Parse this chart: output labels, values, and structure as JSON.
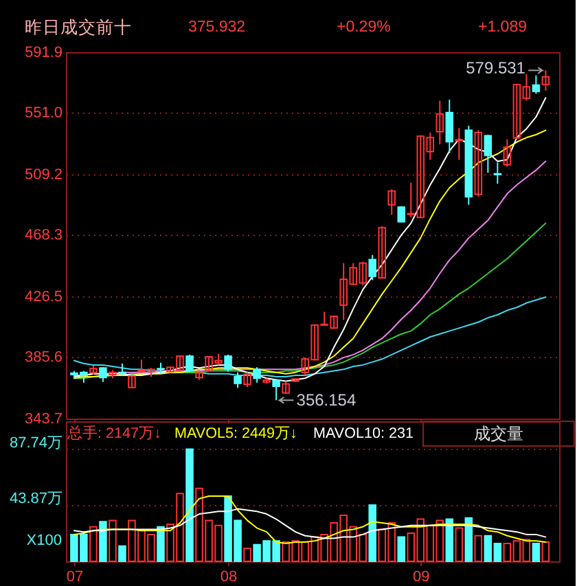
{
  "chart_data": [
    {
      "type": "candlestick",
      "title": "昨日成交前十",
      "categories": [
        "07",
        null,
        null,
        null,
        null,
        null,
        null,
        null,
        null,
        null,
        null,
        null,
        null,
        null,
        null,
        null,
        "08",
        null,
        null,
        null,
        null,
        null,
        null,
        null,
        null,
        null,
        null,
        null,
        null,
        null,
        null,
        null,
        null,
        null,
        null,
        null,
        "09",
        null,
        null,
        null,
        null,
        null,
        null,
        null,
        null,
        null,
        null,
        null,
        null,
        null
      ],
      "ohlc": [
        [
          374.5,
          376,
          371,
          373.5
        ],
        [
          375,
          376,
          368,
          373
        ],
        [
          375,
          379.5,
          373.5,
          377.5
        ],
        [
          378,
          378.5,
          368.5,
          371.5
        ],
        [
          373.5,
          376.5,
          371,
          375
        ],
        [
          375,
          381,
          373,
          374.5
        ],
        [
          364.7,
          373,
          364.5,
          372.5
        ],
        [
          375.5,
          383.5,
          375,
          376.5
        ],
        [
          375.5,
          378,
          372,
          377
        ],
        [
          377.5,
          381.5,
          374,
          377
        ],
        [
          375.5,
          379,
          375,
          378.5
        ],
        [
          376.5,
          386.5,
          376,
          386
        ],
        [
          386,
          387,
          375.5,
          376
        ],
        [
          371.5,
          375,
          370,
          374.6
        ],
        [
          376.5,
          386,
          375.5,
          385.5
        ],
        [
          381.5,
          387.5,
          380,
          383
        ],
        [
          386,
          387,
          375.5,
          377
        ],
        [
          372,
          375,
          364.5,
          367.5
        ],
        [
          366.9,
          375,
          365,
          373.8
        ],
        [
          377,
          378.5,
          368,
          371
        ],
        [
          368.4,
          371,
          367.5,
          369.7
        ],
        [
          369.5,
          370.5,
          356.154,
          365.5
        ],
        [
          361,
          369,
          360.5,
          367.2
        ],
        [
          369,
          371,
          368.5,
          370.5
        ],
        [
          375,
          385,
          373,
          384
        ],
        [
          383.5,
          407.5,
          383,
          407
        ],
        [
          407,
          416,
          406.5,
          407.5
        ],
        [
          405,
          413.5,
          404.5,
          413
        ],
        [
          420.5,
          449,
          410.5,
          438
        ],
        [
          434.7,
          449,
          434,
          445.8
        ],
        [
          435.5,
          450,
          434,
          449
        ],
        [
          451.4,
          454.5,
          437.5,
          440
        ],
        [
          439,
          474,
          438.5,
          473
        ],
        [
          488.5,
          499,
          481.7,
          497.8
        ],
        [
          487,
          487.5,
          476.5,
          477
        ],
        [
          482,
          503.5,
          480,
          482.5
        ],
        [
          480,
          535.5,
          479.5,
          535
        ],
        [
          524.5,
          537.5,
          519,
          534
        ],
        [
          538,
          559,
          529.5,
          550
        ],
        [
          551,
          559.7,
          523.5,
          531.3
        ],
        [
          532,
          540.5,
          519,
          532.5
        ],
        [
          539,
          542,
          488.5,
          494
        ],
        [
          495.6,
          539,
          494,
          537.5
        ],
        [
          535.3,
          536,
          510.2,
          522
        ],
        [
          509.5,
          517.3,
          502.8,
          509
        ],
        [
          515.7,
          532.8,
          514.2,
          527.5
        ],
        [
          533.8,
          570.5,
          533,
          569.9
        ],
        [
          560.6,
          577,
          559,
          568.4
        ],
        [
          569.6,
          576.1,
          563.7,
          565.3
        ],
        [
          569.9,
          579.531,
          565.9,
          575.2
        ]
      ],
      "colors": [
        "#54ffff",
        "#54ffff",
        "#ff3232",
        "#54ffff",
        "#ff3232",
        "#54ffff",
        "#ff3232",
        "#ff3232",
        "#ff3232",
        "#54ffff",
        "#ff3232",
        "#ff3232",
        "#54ffff",
        "#ff3232",
        "#ff3232",
        "#ff3232",
        "#54ffff",
        "#54ffff",
        "#ff3232",
        "#54ffff",
        "#ff3232",
        "#54ffff",
        "#ff3232",
        "#ff3232",
        "#ff3232",
        "#ff3232",
        "#ff3232",
        "#ff3232",
        "#ff3232",
        "#ff3232",
        "#ff3232",
        "#54ffff",
        "#ff3232",
        "#ff3232",
        "#54ffff",
        "#ff3232",
        "#ff3232",
        "#ff3232",
        "#ff3232",
        "#54ffff",
        "#ff3232",
        "#54ffff",
        "#ff3232",
        "#54ffff",
        "#54ffff",
        "#ff3232",
        "#ff3232",
        "#ff3232",
        "#54ffff",
        "#ff3232"
      ],
      "series": [
        {
          "type": "line",
          "color": "#40d8f0",
          "values": [
            383,
            381,
            380,
            380,
            379,
            378,
            377,
            377,
            376,
            376,
            375,
            375,
            375,
            375,
            374,
            374,
            374,
            373,
            373,
            373,
            373,
            372,
            372,
            373,
            373,
            374,
            375,
            376,
            377,
            379,
            380,
            382,
            384,
            387,
            390,
            393,
            396,
            399,
            401,
            403,
            405,
            407,
            409,
            412,
            414,
            417,
            419,
            422,
            424,
            426
          ]
        },
        {
          "type": "line",
          "color": "#32cd32",
          "values": [
            371,
            371,
            372,
            372,
            373,
            373,
            374,
            374,
            374,
            375,
            375,
            375,
            375,
            375,
            376,
            376,
            376,
            376,
            375,
            375,
            375,
            375,
            376,
            376,
            377,
            378,
            379,
            380,
            382,
            385,
            388,
            392,
            395,
            398,
            401,
            403,
            408,
            414,
            418,
            423,
            428,
            432,
            437,
            442,
            447,
            452,
            458,
            464,
            470,
            476
          ]
        },
        {
          "type": "line",
          "color": "#ee82ee",
          "values": [
            373,
            373,
            374,
            374,
            374,
            375,
            375,
            375,
            375,
            376,
            376,
            376,
            376,
            376,
            377,
            377,
            377,
            377,
            377,
            377,
            377,
            377,
            377,
            377,
            378,
            379,
            380,
            382,
            385,
            387,
            390,
            394,
            398,
            404,
            411,
            417,
            424,
            432,
            442,
            451,
            458,
            466,
            472,
            478,
            487,
            496,
            502,
            507,
            512,
            518
          ]
        },
        {
          "type": "line",
          "color": "#ffff00",
          "values": [
            371,
            372,
            372,
            373,
            373,
            373,
            373,
            374,
            374,
            374,
            375,
            375,
            376,
            377,
            377,
            378,
            378,
            378,
            378,
            377,
            376,
            375,
            374,
            375,
            377,
            379,
            382,
            386,
            392,
            398,
            408,
            418,
            428,
            437,
            446,
            456,
            466,
            479,
            491,
            500,
            506,
            511,
            517,
            520,
            523,
            527,
            531,
            534,
            536,
            539
          ]
        },
        {
          "type": "line",
          "color": "#ffffff",
          "values": [
            372,
            373,
            374,
            374,
            374,
            374,
            373,
            373,
            374,
            375,
            376,
            378,
            379,
            378,
            379,
            380,
            380,
            377,
            375,
            373,
            371,
            370,
            369,
            370,
            371,
            374,
            379,
            392,
            404,
            418,
            431,
            440,
            448,
            458,
            468,
            476,
            489,
            502,
            513,
            525,
            533,
            530,
            526,
            524,
            518,
            519,
            534,
            540,
            548,
            561
          ]
        }
      ],
      "ylim": [
        343.7,
        591.9
      ],
      "yticks": [
        343.7,
        385.6,
        426.5,
        468.3,
        509.2,
        {
          "value": 551.0,
          "label": "551.0"
        },
        591.9
      ],
      "grid": "y",
      "tick_labels": "y",
      "annotations": [
        "375.932",
        "+0.29%",
        "+1.089",
        "579.531",
        "356.154"
      ]
    },
    {
      "type": "bar",
      "title": "成交量",
      "ylabel": "X100",
      "categories": [
        "07",
        null,
        null,
        null,
        null,
        null,
        null,
        null,
        null,
        null,
        null,
        null,
        null,
        null,
        null,
        null,
        "08",
        null,
        null,
        null,
        null,
        null,
        null,
        null,
        null,
        null,
        null,
        null,
        null,
        null,
        null,
        null,
        null,
        null,
        null,
        null,
        "09",
        null,
        null,
        null,
        null,
        null,
        null,
        null,
        null,
        null,
        null,
        null,
        null,
        null
      ],
      "series": [
        {
          "type": "bar",
          "colors": [
            "#54ffff",
            "#54ffff",
            "#ff3232",
            "#54ffff",
            "#ff3232",
            "#54ffff",
            "#ff3232",
            "#ff3232",
            "#ff3232",
            "#54ffff",
            "#ff3232",
            "#ff3232",
            "#54ffff",
            "#ff3232",
            "#ff3232",
            "#ff3232",
            "#54ffff",
            "#54ffff",
            "#ff3232",
            "#54ffff",
            "#54ffff",
            "#54ffff",
            "#ff3232",
            "#ff3232",
            "#ff3232",
            "#ff3232",
            "#ff3232",
            "#ff3232",
            "#ff3232",
            "#ff3232",
            "#ff3232",
            "#54ffff",
            "#ff3232",
            "#ff3232",
            "#54ffff",
            "#ff3232",
            "#ff3232",
            "#ff3232",
            "#ff3232",
            "#54ffff",
            "#ff3232",
            "#54ffff",
            "#ff3232",
            "#54ffff",
            "#54ffff",
            "#ff3232",
            "#ff3232",
            "#ff3232",
            "#54ffff",
            "#ff3232"
          ],
          "values": [
            21,
            21,
            27,
            31,
            32,
            12,
            32,
            24,
            21,
            27,
            29,
            53,
            87.74,
            57,
            32,
            28,
            51,
            32,
            10,
            13,
            16,
            16,
            15,
            16,
            15,
            19,
            21,
            30,
            36,
            27,
            21,
            44,
            25,
            30,
            19,
            22,
            33,
            28,
            32,
            33,
            26,
            34,
            20,
            20,
            14,
            14,
            16,
            17,
            14,
            15
          ]
        },
        {
          "type": "line",
          "color": "#ffff00",
          "values": [
            21,
            22,
            24,
            25,
            25,
            25,
            25,
            24,
            24,
            24,
            24,
            30,
            40,
            49,
            51,
            51,
            51,
            40,
            32,
            26,
            23,
            15,
            14,
            15,
            15,
            16,
            18,
            21,
            24,
            25,
            27,
            31,
            30,
            29,
            27,
            27,
            27,
            28,
            29,
            29,
            29,
            29,
            28,
            24,
            23,
            20,
            18,
            16,
            16,
            15
          ]
        },
        {
          "type": "line",
          "color": "#ffffff",
          "values": [
            24,
            23,
            24,
            24,
            25,
            25,
            25,
            25,
            25,
            25,
            26,
            28,
            33,
            37,
            38,
            39,
            39,
            41,
            40,
            39,
            37,
            33,
            28,
            23,
            20,
            19,
            18,
            18,
            19,
            19,
            21,
            24,
            25,
            26,
            27,
            28,
            28,
            28,
            28,
            28,
            28,
            28,
            27,
            26,
            25,
            24,
            23,
            21,
            21,
            19
          ]
        }
      ],
      "ylim": [
        0,
        109.5
      ],
      "yticks": [
        {
          "value": 43.87,
          "label": "43.87万"
        },
        {
          "value": 87.74,
          "label": "87.74万"
        }
      ],
      "grid": "y",
      "annotations": [
        "总手: 2147万↓",
        "MAVOL5: 2449万↓",
        "MAVOL10: 231"
      ]
    }
  ]
}
